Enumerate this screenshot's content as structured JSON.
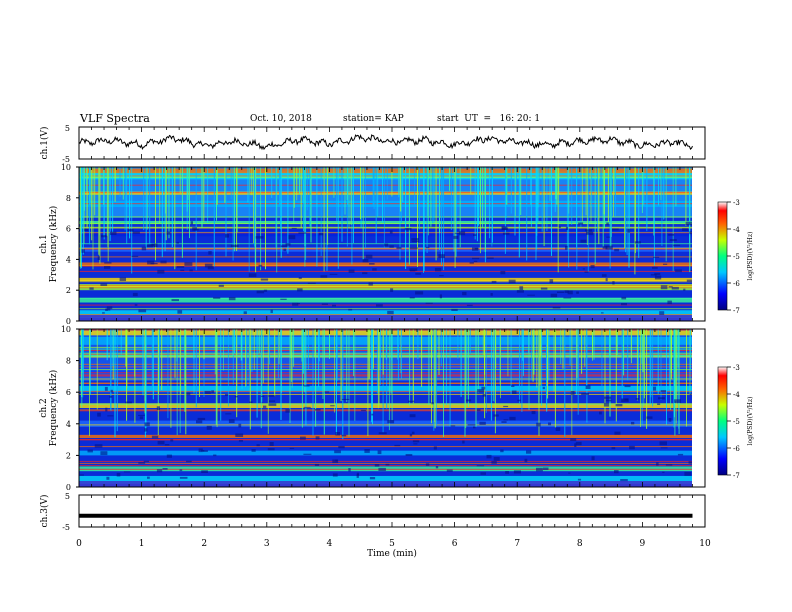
{
  "header": {
    "title": "VLF Spectra",
    "date": "Oct. 10, 2018",
    "station": "station= KAP",
    "start": "start  UT  =   16: 20: 1"
  },
  "chart_data": [
    {
      "type": "line",
      "panel": "ch1-voltage",
      "ylabel": "ch.1(V)",
      "ylim": [
        -5,
        5
      ],
      "y_tick_labels": [
        "5",
        "-5"
      ],
      "xlim": [
        0,
        10
      ],
      "series": [
        {
          "values_note": "",
          "x": [
            0,
            0.5,
            1,
            1.5,
            2,
            2.5,
            3,
            3.5,
            4,
            4.5,
            5,
            5.5,
            6,
            6.5,
            7,
            7.5,
            8,
            8.5,
            9,
            9.5,
            9.8
          ],
          "y": [
            0,
            0.8,
            -0.5,
            1.5,
            -0.8,
            0.5,
            -1.2,
            1.0,
            -0.3,
            1.8,
            0.3,
            0.9,
            -0.5,
            1.4,
            0.2,
            -0.6,
            0.7,
            1.0,
            -0.8,
            0.2,
            -1.0
          ]
        }
      ]
    },
    {
      "type": "heatmap",
      "panel": "ch1-spectrogram",
      "ylabel": "ch.1\nFrequency (kHz)",
      "ylabel_lines": [
        "ch.1",
        "Frequency (kHz)"
      ],
      "ylim": [
        0,
        10
      ],
      "y_ticks": [
        0,
        2,
        4,
        6,
        8,
        10
      ],
      "xlim": [
        0,
        10
      ],
      "colorbar": {
        "label": "log(PSD)(V²/Hz)",
        "ticks": [
          -3,
          -4,
          -5,
          -6,
          -7
        ],
        "range": [
          -7,
          -3
        ]
      }
    },
    {
      "type": "heatmap",
      "panel": "ch2-spectrogram",
      "ylabel_lines": [
        "ch.2",
        "Frequency (kHz)"
      ],
      "ylim": [
        0,
        10
      ],
      "y_ticks": [
        0,
        2,
        4,
        6,
        8,
        10
      ],
      "xlim": [
        0,
        10
      ],
      "colorbar": {
        "label": "log(PSD)(V²/Hz)",
        "ticks": [
          -3,
          -4,
          -5,
          -6,
          -7
        ],
        "range": [
          -7,
          -3
        ]
      }
    },
    {
      "type": "line",
      "panel": "ch3-voltage",
      "ylabel": "ch.3(V)",
      "ylim": [
        -5,
        5
      ],
      "y_tick_labels": [
        "5",
        "-5"
      ],
      "xlim": [
        0,
        10
      ],
      "series": [
        {
          "x": [
            0,
            9.8
          ],
          "y": [
            -1.5,
            -1.5
          ]
        }
      ]
    }
  ],
  "xaxis": {
    "label": "Time  (min)",
    "ticks": [
      "0",
      "1",
      "2",
      "3",
      "4",
      "5",
      "6",
      "7",
      "8",
      "9",
      "10"
    ]
  },
  "colorbar_label": "log(PSD)(V²/Hz)",
  "colorbar_ticks": [
    "-3",
    "-4",
    "-5",
    "-6",
    "-7"
  ],
  "freq_ticks": [
    "0",
    "2",
    "4",
    "6",
    "8",
    "10"
  ],
  "ch1_label": "ch.1",
  "ch2_label": "ch.2",
  "freq_label": "Frequency (kHz)",
  "ch1v_label": "ch.1(V)",
  "ch3v_label": "ch.3(V)",
  "volt_ticks": [
    "5",
    "-5"
  ]
}
